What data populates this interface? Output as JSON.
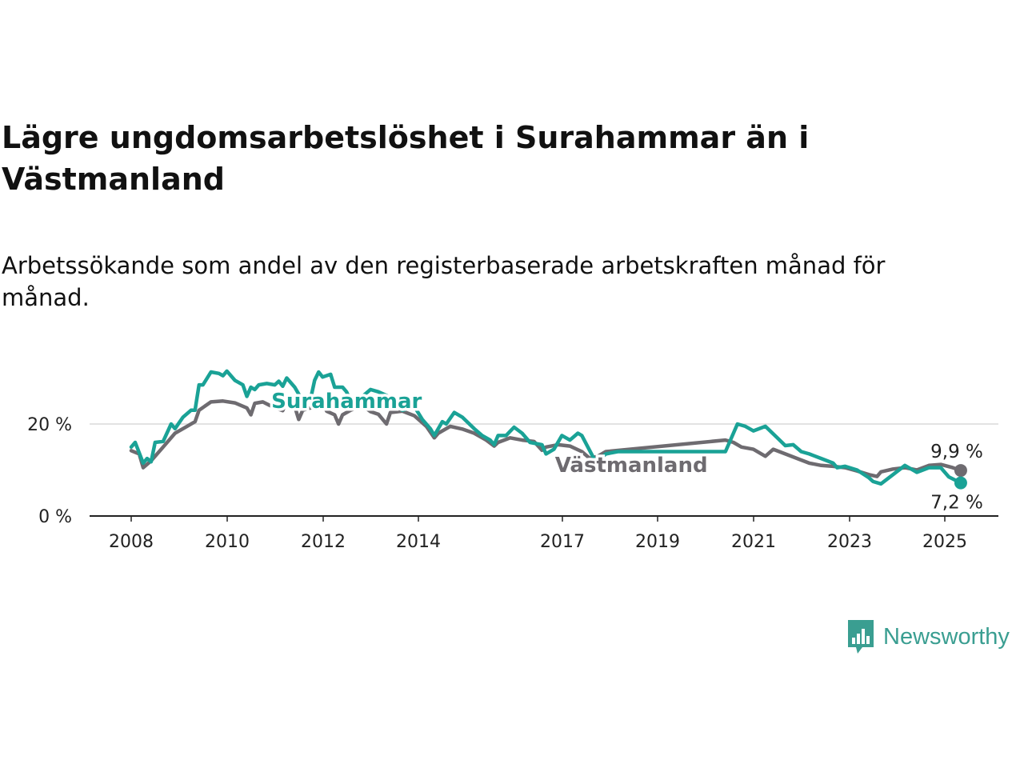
{
  "title": "Lägre ungdomsarbetslöshet i Surahammar än i Västmanland",
  "subtitle": "Arbetssökande som andel av den registerbaserade arbetskraften månad för månad.",
  "brand": {
    "name": "Newsworthy",
    "color": "#3a9e91",
    "icon": "bar-chart-speech-bubble-icon"
  },
  "chart_data": {
    "type": "line",
    "y_unit": "%",
    "ylim": [
      0,
      33
    ],
    "xlim": [
      "2007-12",
      "2025-11"
    ],
    "y_ticks": [
      {
        "value": 0,
        "label": "0 %"
      },
      {
        "value": 20,
        "label": "20 %"
      }
    ],
    "x_ticks": [
      "2008",
      "2010",
      "2012",
      "2014",
      "2017",
      "2019",
      "2021",
      "2023",
      "2025"
    ],
    "grid": "horizontal",
    "series": [
      {
        "name": "Västmanland",
        "color": "#6e6b70",
        "label_position": "2018-06",
        "end_label": "9,9 %",
        "points": [
          [
            "2008-01",
            14.2
          ],
          [
            "2008-03",
            13.5
          ],
          [
            "2008-04",
            10.5
          ],
          [
            "2008-06",
            12.0
          ],
          [
            "2008-09",
            15.0
          ],
          [
            "2008-12",
            18.0
          ],
          [
            "2009-03",
            19.5
          ],
          [
            "2009-05",
            20.5
          ],
          [
            "2009-06",
            23.0
          ],
          [
            "2009-09",
            24.8
          ],
          [
            "2009-12",
            25.0
          ],
          [
            "2010-03",
            24.6
          ],
          [
            "2010-06",
            23.5
          ],
          [
            "2010-07",
            22.0
          ],
          [
            "2010-08",
            24.5
          ],
          [
            "2010-10",
            24.8
          ],
          [
            "2011-01",
            23.5
          ],
          [
            "2011-03",
            22.9
          ],
          [
            "2011-04",
            25.0
          ],
          [
            "2011-06",
            23.8
          ],
          [
            "2011-07",
            21.0
          ],
          [
            "2011-08",
            23.0
          ],
          [
            "2011-11",
            23.8
          ],
          [
            "2012-01",
            24.5
          ],
          [
            "2012-02",
            22.8
          ],
          [
            "2012-04",
            22.0
          ],
          [
            "2012-05",
            20.0
          ],
          [
            "2012-06",
            22.0
          ],
          [
            "2012-08",
            23.0
          ],
          [
            "2012-11",
            24.0
          ],
          [
            "2013-01",
            22.7
          ],
          [
            "2013-03",
            22.1
          ],
          [
            "2013-05",
            20.0
          ],
          [
            "2013-06",
            22.5
          ],
          [
            "2013-09",
            22.8
          ],
          [
            "2013-12",
            21.8
          ],
          [
            "2014-03",
            19.5
          ],
          [
            "2014-05",
            17.0
          ],
          [
            "2014-06",
            18.0
          ],
          [
            "2014-09",
            19.5
          ],
          [
            "2014-12",
            18.9
          ],
          [
            "2015-03",
            18.0
          ],
          [
            "2015-06",
            16.5
          ],
          [
            "2015-08",
            15.2
          ],
          [
            "2015-09",
            16.0
          ],
          [
            "2015-12",
            17.0
          ],
          [
            "2016-03",
            16.5
          ],
          [
            "2016-06",
            16.2
          ],
          [
            "2016-08",
            14.3
          ],
          [
            "2016-09",
            15.0
          ],
          [
            "2016-12",
            15.5
          ],
          [
            "2017-03",
            15.2
          ],
          [
            "2017-06",
            14.0
          ],
          [
            "2017-08",
            12.5
          ],
          [
            "2017-10",
            13.0
          ],
          [
            "2017-12",
            14.0
          ],
          [
            "2020-06",
            16.5
          ],
          [
            "2020-08",
            16.0
          ],
          [
            "2020-10",
            15.0
          ],
          [
            "2021-01",
            14.5
          ],
          [
            "2021-04",
            13.0
          ],
          [
            "2021-06",
            14.5
          ],
          [
            "2021-09",
            13.5
          ],
          [
            "2021-12",
            12.5
          ],
          [
            "2022-03",
            11.5
          ],
          [
            "2022-06",
            11.0
          ],
          [
            "2022-09",
            10.8
          ],
          [
            "2022-12",
            10.5
          ],
          [
            "2023-03",
            9.8
          ],
          [
            "2023-06",
            9.0
          ],
          [
            "2023-08",
            8.6
          ],
          [
            "2023-09",
            9.6
          ],
          [
            "2023-12",
            10.2
          ],
          [
            "2024-03",
            10.5
          ],
          [
            "2024-06",
            10.0
          ],
          [
            "2024-09",
            11.0
          ],
          [
            "2024-12",
            11.2
          ],
          [
            "2025-03",
            10.5
          ],
          [
            "2025-05",
            9.9
          ]
        ]
      },
      {
        "name": "Surahammar",
        "color": "#1aa296",
        "label_position": "2012-05",
        "end_label": "7,2 %",
        "points": [
          [
            "2008-01",
            15.0
          ],
          [
            "2008-02",
            16.0
          ],
          [
            "2008-04",
            11.5
          ],
          [
            "2008-05",
            12.5
          ],
          [
            "2008-06",
            11.8
          ],
          [
            "2008-07",
            16.0
          ],
          [
            "2008-09",
            16.2
          ],
          [
            "2008-11",
            20.0
          ],
          [
            "2008-12",
            19.0
          ],
          [
            "2009-02",
            21.5
          ],
          [
            "2009-04",
            23.0
          ],
          [
            "2009-05",
            23.0
          ],
          [
            "2009-06",
            28.5
          ],
          [
            "2009-07",
            28.5
          ],
          [
            "2009-09",
            31.3
          ],
          [
            "2009-11",
            31.0
          ],
          [
            "2009-12",
            30.5
          ],
          [
            "2010-01",
            31.5
          ],
          [
            "2010-03",
            29.5
          ],
          [
            "2010-05",
            28.5
          ],
          [
            "2010-06",
            26.0
          ],
          [
            "2010-07",
            28.0
          ],
          [
            "2010-08",
            27.5
          ],
          [
            "2010-09",
            28.5
          ],
          [
            "2010-11",
            28.8
          ],
          [
            "2011-01",
            28.5
          ],
          [
            "2011-02",
            29.3
          ],
          [
            "2011-03",
            28.2
          ],
          [
            "2011-04",
            30.0
          ],
          [
            "2011-06",
            28.0
          ],
          [
            "2011-07",
            26.5
          ],
          [
            "2011-08",
            25.0
          ],
          [
            "2011-10",
            25.5
          ],
          [
            "2011-11",
            29.5
          ],
          [
            "2011-12",
            31.3
          ],
          [
            "2012-01",
            30.2
          ],
          [
            "2012-03",
            30.8
          ],
          [
            "2012-04",
            28.0
          ],
          [
            "2012-06",
            28.0
          ],
          [
            "2012-07",
            27.0
          ],
          [
            "2012-08",
            25.0
          ],
          [
            "2012-09",
            24.5
          ],
          [
            "2012-11",
            26.0
          ],
          [
            "2013-01",
            27.5
          ],
          [
            "2013-03",
            27.0
          ],
          [
            "2013-05",
            26.2
          ],
          [
            "2013-07",
            24.5
          ],
          [
            "2013-09",
            23.0
          ],
          [
            "2013-12",
            23.8
          ],
          [
            "2014-02",
            21.0
          ],
          [
            "2014-04",
            19.0
          ],
          [
            "2014-05",
            17.5
          ],
          [
            "2014-07",
            20.5
          ],
          [
            "2014-08",
            20.0
          ],
          [
            "2014-10",
            22.5
          ],
          [
            "2014-12",
            21.5
          ],
          [
            "2015-03",
            19.0
          ],
          [
            "2015-05",
            17.5
          ],
          [
            "2015-07",
            16.5
          ],
          [
            "2015-08",
            15.5
          ],
          [
            "2015-09",
            17.5
          ],
          [
            "2015-11",
            17.5
          ],
          [
            "2016-01",
            19.3
          ],
          [
            "2016-03",
            18.0
          ],
          [
            "2016-05",
            16.0
          ],
          [
            "2016-08",
            15.5
          ],
          [
            "2016-09",
            13.5
          ],
          [
            "2016-11",
            14.5
          ],
          [
            "2017-01",
            17.5
          ],
          [
            "2017-03",
            16.5
          ],
          [
            "2017-05",
            18.0
          ],
          [
            "2017-06",
            17.5
          ],
          [
            "2017-09",
            12.5
          ],
          [
            "2017-10",
            12.0
          ],
          [
            "2017-12",
            13.5
          ],
          [
            "2018-03",
            14.0
          ],
          [
            "2020-06",
            14.0
          ],
          [
            "2020-07",
            16.0
          ],
          [
            "2020-09",
            20.0
          ],
          [
            "2020-11",
            19.5
          ],
          [
            "2021-01",
            18.5
          ],
          [
            "2021-04",
            19.5
          ],
          [
            "2021-07",
            17.0
          ],
          [
            "2021-09",
            15.3
          ],
          [
            "2021-11",
            15.5
          ],
          [
            "2022-01",
            14.0
          ],
          [
            "2022-03",
            13.5
          ],
          [
            "2022-06",
            12.5
          ],
          [
            "2022-09",
            11.5
          ],
          [
            "2022-10",
            10.5
          ],
          [
            "2022-12",
            10.8
          ],
          [
            "2023-03",
            10.0
          ],
          [
            "2023-06",
            8.3
          ],
          [
            "2023-07",
            7.5
          ],
          [
            "2023-09",
            7.0
          ],
          [
            "2023-12",
            9.0
          ],
          [
            "2024-03",
            11.0
          ],
          [
            "2024-06",
            9.5
          ],
          [
            "2024-09",
            10.5
          ],
          [
            "2024-12",
            10.5
          ],
          [
            "2025-02",
            8.5
          ],
          [
            "2025-05",
            7.2
          ]
        ]
      }
    ]
  }
}
